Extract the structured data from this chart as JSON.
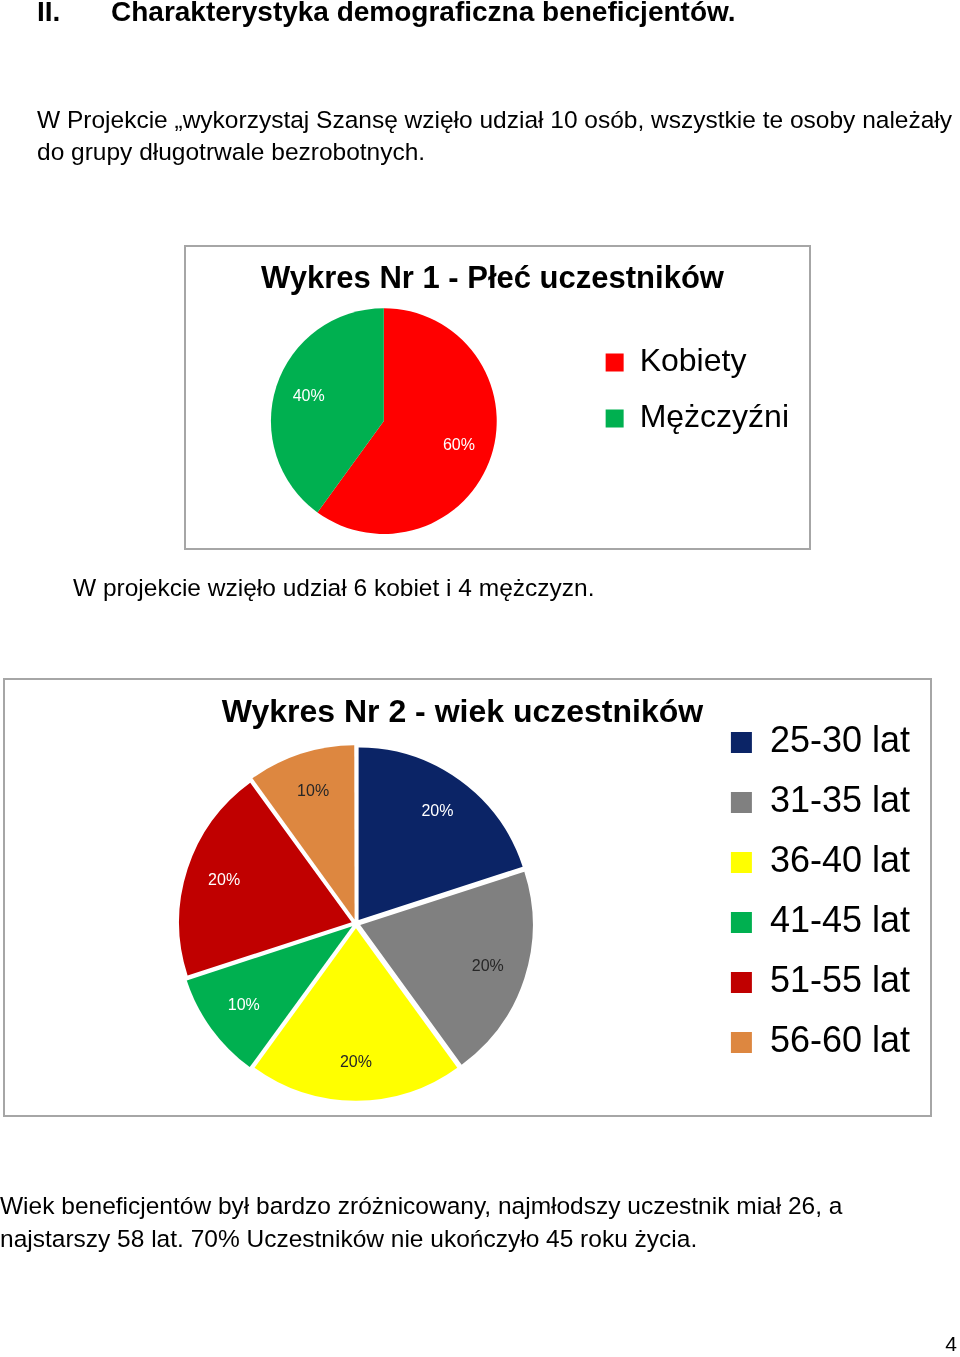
{
  "chart_data": [
    {
      "type": "pie",
      "title": "Wykres Nr 1 - Płeć uczestników",
      "categories": [
        "Kobiety",
        "Mężczyźni"
      ],
      "values": [
        60,
        40
      ],
      "colors": [
        "#ff0000",
        "#00b050"
      ],
      "value_labels": [
        "60%",
        "40%"
      ],
      "legend": "right",
      "annotations": [
        "II.",
        "Charakterystyka demograficzna beneficjentów.",
        "W Projekcie „wykorzystaj Szansę wzięło udział 10 osób, wszystkie te osoby należały do grupy długotrwale bezrobotnych.",
        "W projekcie wzięło udział 6 kobiet i 4 mężczyzn."
      ]
    },
    {
      "type": "pie",
      "title": "Wykres Nr 2 - wiek uczestników",
      "categories": [
        "25-30 lat",
        "31-35 lat",
        "36-40 lat",
        "41-45 lat",
        "51-55 lat",
        "56-60 lat"
      ],
      "values": [
        20,
        20,
        20,
        10,
        20,
        10
      ],
      "colors": [
        "#0b2466",
        "#808080",
        "#ffff00",
        "#00b050",
        "#c00000",
        "#dd8740"
      ],
      "value_labels": [
        "20%",
        "20%",
        "20%",
        "10%",
        "20%",
        "10%"
      ],
      "legend": "right",
      "annotations": [
        "Wiek beneficjentów był bardzo zróżnicowany, najmłodszy uczestnik miał 26, a najstarszy 58 lat. 70% Uczestników nie ukończyło 45 roku życia.",
        "4"
      ]
    }
  ]
}
